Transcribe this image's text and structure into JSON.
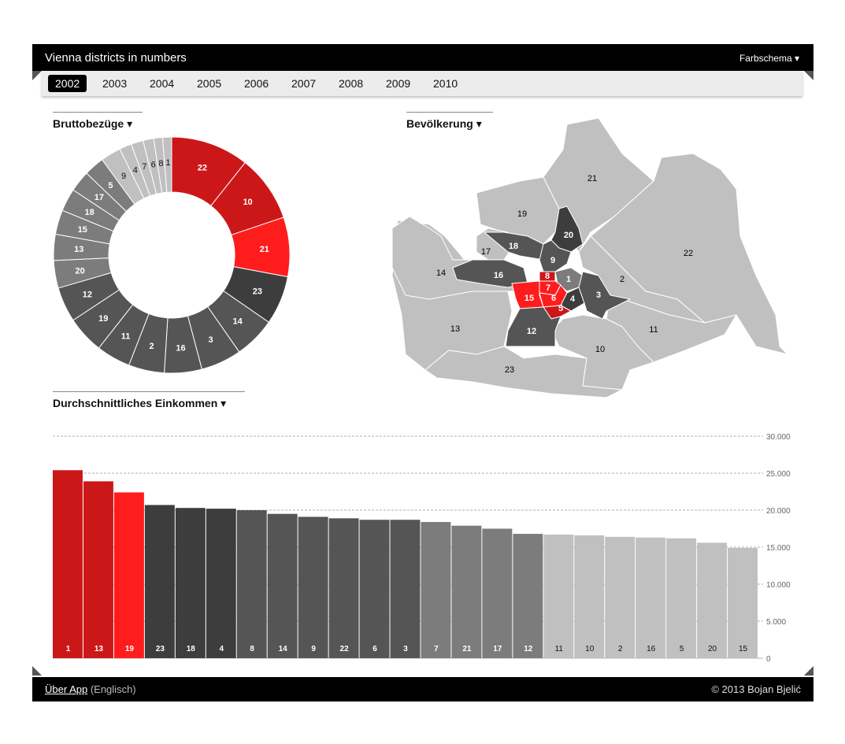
{
  "header": {
    "title": "Vienna districts in numbers",
    "color_scheme_label": "Farbschema ▾"
  },
  "years": [
    "2002",
    "2003",
    "2004",
    "2005",
    "2006",
    "2007",
    "2008",
    "2009",
    "2010"
  ],
  "active_year": "2002",
  "sections": {
    "donut": "Bruttobezüge ▾",
    "map": "Bevölkerung ▾",
    "bars": "Durchschnittliches Einkommen ▾"
  },
  "colors": {
    "red_dark": "#cc1719",
    "red": "#ff1c1c",
    "dark": "#3d3d3d",
    "mid_dark": "#555555",
    "mid": "#7c7c7c",
    "light": "#c0c0c0"
  },
  "footer": {
    "about_link": "Über App",
    "about_lang": "(Englisch)",
    "copyright": "© 2013 Bojan Bjelić"
  },
  "chart_data": [
    {
      "type": "pie",
      "variant": "donut",
      "slices": [
        {
          "label": "22",
          "value": 9.6,
          "color": "#cc1719"
        },
        {
          "label": "10",
          "value": 8.2,
          "color": "#cc1719"
        },
        {
          "label": "21",
          "value": 7.3,
          "color": "#ff1c1c"
        },
        {
          "label": "23",
          "value": 6.0,
          "color": "#3d3d3d"
        },
        {
          "label": "14",
          "value": 5.1,
          "color": "#555555"
        },
        {
          "label": "3",
          "value": 5.0,
          "color": "#555555"
        },
        {
          "label": "16",
          "value": 4.6,
          "color": "#555555"
        },
        {
          "label": "2",
          "value": 4.4,
          "color": "#555555"
        },
        {
          "label": "11",
          "value": 4.2,
          "color": "#555555"
        },
        {
          "label": "19",
          "value": 4.6,
          "color": "#555555"
        },
        {
          "label": "12",
          "value": 4.3,
          "color": "#555555"
        },
        {
          "label": "20",
          "value": 3.4,
          "color": "#7c7c7c"
        },
        {
          "label": "13",
          "value": 3.2,
          "color": "#7c7c7c"
        },
        {
          "label": "15",
          "value": 3.0,
          "color": "#7c7c7c"
        },
        {
          "label": "18",
          "value": 2.8,
          "color": "#7c7c7c"
        },
        {
          "label": "17",
          "value": 2.6,
          "color": "#7c7c7c"
        },
        {
          "label": "5",
          "value": 2.5,
          "color": "#7c7c7c"
        },
        {
          "label": "9",
          "value": 2.5,
          "color": "#c0c0c0"
        },
        {
          "label": "4",
          "value": 1.5,
          "color": "#c0c0c0"
        },
        {
          "label": "7",
          "value": 1.5,
          "color": "#c0c0c0"
        },
        {
          "label": "6",
          "value": 1.3,
          "color": "#c0c0c0"
        },
        {
          "label": "8",
          "value": 1.1,
          "color": "#c0c0c0"
        },
        {
          "label": "1",
          "value": 1.1,
          "color": "#c0c0c0"
        }
      ]
    },
    {
      "type": "bar",
      "categories": [
        "1",
        "13",
        "19",
        "23",
        "18",
        "4",
        "8",
        "14",
        "9",
        "22",
        "6",
        "3",
        "7",
        "21",
        "17",
        "12",
        "11",
        "10",
        "2",
        "16",
        "5",
        "20",
        "15"
      ],
      "values": [
        25400,
        23900,
        22400,
        20700,
        20300,
        20200,
        20000,
        19500,
        19100,
        18900,
        18700,
        18700,
        18400,
        17900,
        17500,
        16800,
        16700,
        16600,
        16400,
        16300,
        16200,
        15600,
        14900
      ],
      "colors": [
        "#cc1719",
        "#cc1719",
        "#ff1c1c",
        "#3d3d3d",
        "#3d3d3d",
        "#3d3d3d",
        "#555555",
        "#555555",
        "#555555",
        "#555555",
        "#555555",
        "#555555",
        "#7c7c7c",
        "#7c7c7c",
        "#7c7c7c",
        "#7c7c7c",
        "#c0c0c0",
        "#c0c0c0",
        "#c0c0c0",
        "#c0c0c0",
        "#c0c0c0",
        "#c0c0c0",
        "#c0c0c0"
      ],
      "ylim": [
        0,
        30000
      ],
      "yticks": [
        {
          "value": 0,
          "label": "0"
        },
        {
          "value": 5000,
          "label": "5.000"
        },
        {
          "value": 10000,
          "label": "10.000"
        },
        {
          "value": 15000,
          "label": "15.000"
        },
        {
          "value": 20000,
          "label": "20.000"
        },
        {
          "value": 25000,
          "label": "25.000"
        },
        {
          "value": 30000,
          "label": "30.000"
        }
      ],
      "grid": true
    }
  ],
  "map": {
    "districts": [
      {
        "label": "21",
        "color": "#c0c0c0"
      },
      {
        "label": "22",
        "color": "#c0c0c0"
      },
      {
        "label": "19",
        "color": "#c0c0c0"
      },
      {
        "label": "20",
        "color": "#3d3d3d"
      },
      {
        "label": "18",
        "color": "#555555"
      },
      {
        "label": "17",
        "color": "#c0c0c0"
      },
      {
        "label": "9",
        "color": "#555555"
      },
      {
        "label": "2",
        "color": "#c0c0c0"
      },
      {
        "label": "14",
        "color": "#c0c0c0"
      },
      {
        "label": "16",
        "color": "#555555"
      },
      {
        "label": "8",
        "color": "#cc1719"
      },
      {
        "label": "1",
        "color": "#7c7c7c"
      },
      {
        "label": "7",
        "color": "#ff1c1c"
      },
      {
        "label": "15",
        "color": "#ff1c1c"
      },
      {
        "label": "6",
        "color": "#ff1c1c"
      },
      {
        "label": "4",
        "color": "#3d3d3d"
      },
      {
        "label": "3",
        "color": "#555555"
      },
      {
        "label": "5",
        "color": "#cc1719"
      },
      {
        "label": "13",
        "color": "#c0c0c0"
      },
      {
        "label": "12",
        "color": "#555555"
      },
      {
        "label": "11",
        "color": "#c0c0c0"
      },
      {
        "label": "10",
        "color": "#c0c0c0"
      },
      {
        "label": "23",
        "color": "#c0c0c0"
      }
    ]
  }
}
